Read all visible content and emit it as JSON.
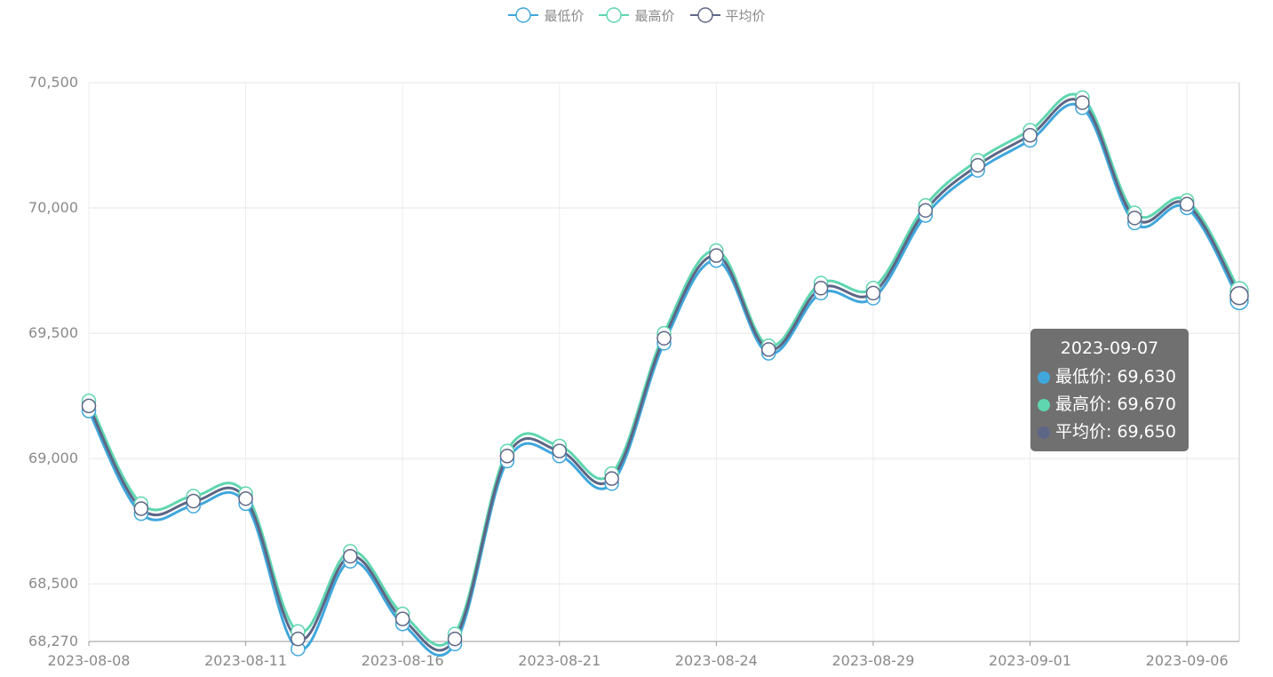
{
  "legend": [
    {
      "name": "最低价",
      "color": "#3fa7dc"
    },
    {
      "name": "最高价",
      "color": "#5fd6b0"
    },
    {
      "name": "平均价",
      "color": "#5d6685"
    }
  ],
  "tooltip": {
    "title": "2023-09-07",
    "rows": [
      {
        "label": "最低价: 69,630",
        "color": "#3fa7dc"
      },
      {
        "label": "最高价: 69,670",
        "color": "#5fd6b0"
      },
      {
        "label": "平均价: 69,650",
        "color": "#5d6685"
      }
    ]
  },
  "chart_data": {
    "type": "line",
    "smooth": true,
    "x": [
      "2023-08-08",
      "2023-08-09",
      "2023-08-10",
      "2023-08-11",
      "2023-08-14",
      "2023-08-15",
      "2023-08-16",
      "2023-08-17",
      "2023-08-18",
      "2023-08-21",
      "2023-08-22",
      "2023-08-23",
      "2023-08-24",
      "2023-08-25",
      "2023-08-28",
      "2023-08-29",
      "2023-08-30",
      "2023-08-31",
      "2023-09-01",
      "2023-09-04",
      "2023-09-05",
      "2023-09-06",
      "2023-09-07"
    ],
    "x_tick_labels": [
      "2023-08-08",
      "2023-08-11",
      "2023-08-16",
      "2023-08-21",
      "2023-08-24",
      "2023-08-29",
      "2023-09-01",
      "2023-09-06"
    ],
    "y_ticks": [
      68270,
      68500,
      69000,
      69500,
      70000,
      70500
    ],
    "y_tick_labels": [
      "68,270",
      "68,500",
      "69,000",
      "69,500",
      "70,000",
      "70,500"
    ],
    "ylim": [
      68270,
      70500
    ],
    "grid": true,
    "legend_position": "top-center",
    "series": [
      {
        "name": "最低价",
        "color": "#3fa7dc",
        "values": [
          69190,
          68780,
          68810,
          68820,
          68240,
          68590,
          68340,
          68260,
          68990,
          69010,
          68900,
          69460,
          69790,
          69420,
          69660,
          69640,
          69970,
          70150,
          70270,
          70400,
          69940,
          70000,
          69630
        ]
      },
      {
        "name": "最高价",
        "color": "#5fd6b0",
        "values": [
          69230,
          68820,
          68850,
          68860,
          68310,
          68630,
          68380,
          68300,
          69030,
          69050,
          68940,
          69500,
          69830,
          69450,
          69700,
          69680,
          70010,
          70190,
          70310,
          70440,
          69980,
          70030,
          69670
        ]
      },
      {
        "name": "平均价",
        "color": "#5d6685",
        "values": [
          69210,
          68800,
          68830,
          68840,
          68280,
          68610,
          68360,
          68280,
          69010,
          69030,
          68920,
          69480,
          69810,
          69435,
          69680,
          69660,
          69990,
          70170,
          70290,
          70420,
          69960,
          70015,
          69650
        ]
      }
    ]
  }
}
